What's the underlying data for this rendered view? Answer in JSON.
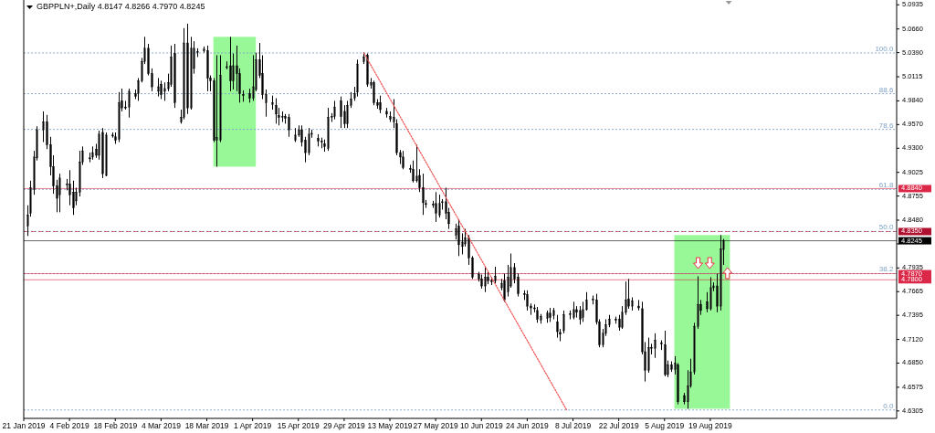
{
  "chart_data": {
    "type": "candlestick",
    "title": "GBPPLN+,Daily  4.8147 4.8266 4.7970 4.8245",
    "xlim": [
      "2019-01-21",
      "2019-10-15"
    ],
    "xticks": [
      {
        "value": "2019-01-21",
        "label": "21 Jan 2019"
      },
      {
        "value": "2019-02-04",
        "label": "4 Feb 2019"
      },
      {
        "value": "2019-02-18",
        "label": "18 Feb 2019"
      },
      {
        "value": "2019-03-04",
        "label": "4 Mar 2019"
      },
      {
        "value": "2019-03-18",
        "label": "18 Mar 2019"
      },
      {
        "value": "2019-04-01",
        "label": "1 Apr 2019"
      },
      {
        "value": "2019-04-15",
        "label": "15 Apr 2019"
      },
      {
        "value": "2019-04-29",
        "label": "29 Apr 2019"
      },
      {
        "value": "2019-05-13",
        "label": "13 May 2019"
      },
      {
        "value": "2019-05-27",
        "label": "27 May 2019"
      },
      {
        "value": "2019-06-10",
        "label": "10 Jun 2019"
      },
      {
        "value": "2019-06-24",
        "label": "24 Jun 2019"
      },
      {
        "value": "2019-07-08",
        "label": "8 Jul 2019"
      },
      {
        "value": "2019-07-22",
        "label": "22 Jul 2019"
      },
      {
        "value": "2019-08-05",
        "label": "5 Aug 2019"
      },
      {
        "value": "2019-08-19",
        "label": "19 Aug 2019"
      }
    ],
    "ylim": [
      4.622,
      5.099
    ],
    "yticks": [
      {
        "value": 5.0935,
        "label": "5.0935"
      },
      {
        "value": 5.066,
        "label": "5.0660"
      },
      {
        "value": 5.039,
        "label": "5.0390"
      },
      {
        "value": 5.0115,
        "label": "5.0115"
      },
      {
        "value": 4.984,
        "label": "4.9840"
      },
      {
        "value": 4.957,
        "label": "4.9570"
      },
      {
        "value": 4.93,
        "label": "4.9300"
      },
      {
        "value": 4.9025,
        "label": "4.9025"
      },
      {
        "value": 4.8755,
        "label": "4.8755"
      },
      {
        "value": 4.848,
        "label": "4.8480"
      },
      {
        "value": 4.821,
        "label": null
      },
      {
        "value": 4.7935,
        "label": "4.7935"
      },
      {
        "value": 4.7665,
        "label": "4.7665"
      },
      {
        "value": 4.7395,
        "label": "4.7395"
      },
      {
        "value": 4.712,
        "label": "4.7120"
      },
      {
        "value": 4.685,
        "label": "4.6850"
      },
      {
        "value": 4.6575,
        "label": "4.6575"
      },
      {
        "value": 4.6305,
        "label": "4.6305"
      }
    ],
    "grid": false,
    "annotations": [
      {
        "text": "100.0",
        "x": "2019-10-14",
        "y": 5.0386
      },
      {
        "text": "88.6",
        "x": "2019-10-14",
        "y": 4.9922
      },
      {
        "text": "78.6",
        "x": "2019-10-14",
        "y": 4.9515
      },
      {
        "text": "61.8",
        "x": "2019-10-14",
        "y": 4.8831
      },
      {
        "text": "50.0",
        "x": "2019-10-14",
        "y": 4.8351
      },
      {
        "text": "38.2",
        "x": "2019-10-14",
        "y": 4.7871
      },
      {
        "text": "0.0",
        "x": "2019-10-14",
        "y": 4.6316
      }
    ],
    "bands": [
      {
        "axis": "x",
        "from": "2019-03-20",
        "to": "2019-04-02",
        "color": "#98f898"
      },
      {
        "axis": "x",
        "from": "2019-08-08",
        "to": "2019-08-25",
        "color": "#98f898"
      }
    ],
    "ref_lines": [
      {
        "axis": "y",
        "value": 5.0386,
        "color": "#7fa3c8",
        "line_style": "dotted"
      },
      {
        "axis": "y",
        "value": 4.9922,
        "color": "#7fa3c8",
        "line_style": "dotted"
      },
      {
        "axis": "y",
        "value": 4.9515,
        "color": "#7fa3c8",
        "line_style": "dotted"
      },
      {
        "axis": "y",
        "value": 4.8831,
        "color": "#7fa3c8",
        "line_style": "dotted"
      },
      {
        "axis": "y",
        "value": 4.8351,
        "color": "#7fa3c8",
        "line_style": "dotted"
      },
      {
        "axis": "y",
        "value": 4.7871,
        "color": "#7fa3c8",
        "line_style": "dotted"
      },
      {
        "axis": "y",
        "value": 4.6316,
        "color": "#7fa3c8",
        "line_style": "dotted"
      },
      {
        "axis": "y",
        "value": 4.884,
        "label": "4.8840",
        "color": "#dc2848",
        "line_style": "solid"
      },
      {
        "axis": "y",
        "value": 4.835,
        "label": "4.8350",
        "color": "#b01030",
        "line_style": "dashed"
      },
      {
        "axis": "y",
        "value": 4.8245,
        "label": "4.8245",
        "color": "#000000",
        "line_style": "solid"
      },
      {
        "axis": "y",
        "value": 4.787,
        "label": "4.7870",
        "color": "#dc2848",
        "line_style": "solid"
      },
      {
        "axis": "y",
        "value": 4.78,
        "label": "4.7800",
        "color": "#dc2848",
        "line_style": "solid"
      }
    ],
    "series": [
      {
        "x": [
          "2019-01-22",
          "2019-01-23",
          "2019-01-24",
          "2019-01-25",
          "2019-01-27",
          "2019-01-28",
          "2019-01-29",
          "2019-01-30",
          "2019-01-31",
          "2019-02-01",
          "2019-02-03",
          "2019-02-04",
          "2019-02-05",
          "2019-02-06",
          "2019-02-07",
          "2019-02-08",
          "2019-02-10",
          "2019-02-11",
          "2019-02-12",
          "2019-02-13",
          "2019-02-14",
          "2019-02-15",
          "2019-02-17",
          "2019-02-18",
          "2019-02-19",
          "2019-02-20",
          "2019-02-21",
          "2019-02-22",
          "2019-02-24",
          "2019-02-25",
          "2019-02-26",
          "2019-02-27",
          "2019-02-28",
          "2019-03-01",
          "2019-03-03",
          "2019-03-04",
          "2019-03-05",
          "2019-03-06",
          "2019-03-07",
          "2019-03-08",
          "2019-03-10",
          "2019-03-11",
          "2019-03-12",
          "2019-03-13",
          "2019-03-14",
          "2019-03-15",
          "2019-03-17",
          "2019-03-18",
          "2019-03-19",
          "2019-03-20",
          "2019-03-21",
          "2019-03-22",
          "2019-03-24",
          "2019-03-25",
          "2019-03-26",
          "2019-03-27",
          "2019-03-28",
          "2019-03-29",
          "2019-03-31",
          "2019-04-01",
          "2019-04-02",
          "2019-04-03",
          "2019-04-04",
          "2019-04-05",
          "2019-04-07",
          "2019-04-08",
          "2019-04-09",
          "2019-04-10",
          "2019-04-11",
          "2019-04-12",
          "2019-04-14",
          "2019-04-15",
          "2019-04-16",
          "2019-04-17",
          "2019-04-18",
          "2019-04-19",
          "2019-04-21",
          "2019-04-22",
          "2019-04-23",
          "2019-04-24",
          "2019-04-25",
          "2019-04-26",
          "2019-04-28",
          "2019-04-29",
          "2019-04-30",
          "2019-05-01",
          "2019-05-02",
          "2019-05-03",
          "2019-05-05",
          "2019-05-06",
          "2019-05-07",
          "2019-05-08",
          "2019-05-09",
          "2019-05-10",
          "2019-05-12",
          "2019-05-13",
          "2019-05-14",
          "2019-05-15",
          "2019-05-16",
          "2019-05-17",
          "2019-05-19",
          "2019-05-20",
          "2019-05-21",
          "2019-05-22",
          "2019-05-23",
          "2019-05-24",
          "2019-05-26",
          "2019-05-27",
          "2019-05-28",
          "2019-05-29",
          "2019-05-30",
          "2019-05-31",
          "2019-06-02",
          "2019-06-03",
          "2019-06-04",
          "2019-06-05",
          "2019-06-06",
          "2019-06-07",
          "2019-06-09",
          "2019-06-10",
          "2019-06-11",
          "2019-06-12",
          "2019-06-13",
          "2019-06-14",
          "2019-06-16",
          "2019-06-17",
          "2019-06-18",
          "2019-06-19",
          "2019-06-20",
          "2019-06-21",
          "2019-06-23",
          "2019-06-24",
          "2019-06-25",
          "2019-06-26",
          "2019-06-27",
          "2019-06-28",
          "2019-06-30",
          "2019-07-01",
          "2019-07-02",
          "2019-07-03",
          "2019-07-04",
          "2019-07-05",
          "2019-07-07",
          "2019-07-08",
          "2019-07-09",
          "2019-07-10",
          "2019-07-11",
          "2019-07-12",
          "2019-07-14",
          "2019-07-15",
          "2019-07-16",
          "2019-07-17",
          "2019-07-18",
          "2019-07-19",
          "2019-07-21",
          "2019-07-22",
          "2019-07-23",
          "2019-07-24",
          "2019-07-25",
          "2019-07-26",
          "2019-07-28",
          "2019-07-29",
          "2019-07-30",
          "2019-07-31",
          "2019-08-01",
          "2019-08-02",
          "2019-08-04",
          "2019-08-05",
          "2019-08-06",
          "2019-08-07",
          "2019-08-08",
          "2019-08-09",
          "2019-08-11",
          "2019-08-12",
          "2019-08-13",
          "2019-08-14",
          "2019-08-15",
          "2019-08-16",
          "2019-08-18",
          "2019-08-19",
          "2019-08-20",
          "2019-08-21",
          "2019-08-22",
          "2019-08-23"
        ],
        "ohlc": [
          [
            4.841,
            4.865,
            4.83,
            4.854
          ],
          [
            4.856,
            4.893,
            4.852,
            4.885
          ],
          [
            4.883,
            4.927,
            4.877,
            4.92
          ],
          [
            4.919,
            4.955,
            4.916,
            4.951
          ],
          [
            4.951,
            4.972,
            4.937,
            4.96
          ],
          [
            4.96,
            4.968,
            4.929,
            4.934
          ],
          [
            4.934,
            4.943,
            4.899,
            4.909
          ],
          [
            4.909,
            4.922,
            4.878,
            4.887
          ],
          [
            4.887,
            4.894,
            4.857,
            4.873
          ],
          [
            4.877,
            4.901,
            4.857,
            4.896
          ],
          [
            4.889,
            4.895,
            4.882,
            4.889
          ],
          [
            4.889,
            4.905,
            4.865,
            4.877
          ],
          [
            4.88,
            4.893,
            4.854,
            4.862
          ],
          [
            4.87,
            4.885,
            4.865,
            4.88
          ],
          [
            4.88,
            4.927,
            4.875,
            4.914
          ],
          [
            4.914,
            4.932,
            4.911,
            4.927
          ],
          [
            4.919,
            4.925,
            4.914,
            4.918
          ],
          [
            4.92,
            4.932,
            4.917,
            4.925
          ],
          [
            4.929,
            4.935,
            4.919,
            4.922
          ],
          [
            4.922,
            4.95,
            4.917,
            4.946
          ],
          [
            4.948,
            4.953,
            4.896,
            4.901
          ],
          [
            4.899,
            4.948,
            4.898,
            4.945
          ],
          [
            4.945,
            4.948,
            4.942,
            4.944
          ],
          [
            4.943,
            4.948,
            4.935,
            4.939
          ],
          [
            4.94,
            4.994,
            4.937,
            4.982
          ],
          [
            4.984,
            4.998,
            4.972,
            4.976
          ],
          [
            4.977,
            4.984,
            4.974,
            4.976
          ],
          [
            4.977,
            4.998,
            4.965,
            4.995
          ],
          [
            4.992,
            4.997,
            4.986,
            4.989
          ],
          [
            4.992,
            5.01,
            4.984,
            5.007
          ],
          [
            5.007,
            5.033,
            5.005,
            5.029
          ],
          [
            5.029,
            5.057,
            5.026,
            5.044
          ],
          [
            5.044,
            5.049,
            5.013,
            5.015
          ],
          [
            5.015,
            5.021,
            4.995,
            5.0
          ],
          [
            4.995,
            5.01,
            4.989,
            5.0
          ],
          [
            5.003,
            5.007,
            4.986,
            4.991
          ],
          [
            4.995,
            5.005,
            4.984,
            4.998
          ],
          [
            4.998,
            5.015,
            4.995,
            5.005
          ],
          [
            5.003,
            5.047,
            5.0,
            5.034
          ],
          [
            5.038,
            5.049,
            4.976,
            4.982
          ],
          [
            4.96,
            4.974,
            4.958,
            4.965
          ],
          [
            4.965,
            5.067,
            4.963,
            5.05
          ],
          [
            5.05,
            5.072,
            4.969,
            4.976
          ],
          [
            4.976,
            5.057,
            4.974,
            5.044
          ],
          [
            5.021,
            5.052,
            5.015,
            5.044
          ],
          [
            5.039,
            5.044,
            5.034,
            5.04
          ],
          [
            5.041,
            5.046,
            5.039,
            5.043
          ],
          [
            5.041,
            5.047,
            4.995,
            5.01
          ],
          [
            5.01,
            5.013,
            4.995,
            5.007
          ],
          [
            5.007,
            5.01,
            4.937,
            4.939
          ],
          [
            4.939,
            5.036,
            4.909,
            4.942
          ],
          [
            4.939,
            5.036,
            4.937,
            5.013
          ],
          [
            5.023,
            5.029,
            5.02,
            5.023
          ],
          [
            5.024,
            5.057,
            4.995,
            5.007
          ],
          [
            5.007,
            5.038,
            4.997,
            5.024
          ],
          [
            5.024,
            5.047,
            4.995,
            5.015
          ],
          [
            5.015,
            5.021,
            4.982,
            4.992
          ],
          [
            4.991,
            4.996,
            4.983,
            4.99
          ],
          [
            4.992,
            4.998,
            4.982,
            4.987
          ],
          [
            4.987,
            5.036,
            4.984,
            5.0
          ],
          [
            4.997,
            5.039,
            4.995,
            5.031
          ],
          [
            5.031,
            5.05,
            5.01,
            5.013
          ],
          [
            5.015,
            5.036,
            4.986,
            4.991
          ],
          [
            4.982,
            4.997,
            4.966,
            4.991
          ],
          [
            4.98,
            4.99,
            4.974,
            4.982
          ],
          [
            4.979,
            4.987,
            4.958,
            4.969
          ],
          [
            4.967,
            4.976,
            4.956,
            4.965
          ],
          [
            4.965,
            4.972,
            4.96,
            4.966
          ],
          [
            4.966,
            4.969,
            4.958,
            4.964
          ],
          [
            4.965,
            4.969,
            4.943,
            4.951
          ],
          [
            4.939,
            4.953,
            4.937,
            4.945
          ],
          [
            4.945,
            4.956,
            4.943,
            4.951
          ],
          [
            4.951,
            4.956,
            4.932,
            4.937
          ],
          [
            4.939,
            4.943,
            4.914,
            4.925
          ],
          [
            4.925,
            4.953,
            4.922,
            4.946
          ],
          [
            4.946,
            4.951,
            4.942,
            4.947
          ],
          [
            4.941,
            4.946,
            4.932,
            4.938
          ],
          [
            4.938,
            4.942,
            4.93,
            4.937
          ],
          [
            4.935,
            4.94,
            4.926,
            4.932
          ],
          [
            4.93,
            4.976,
            4.927,
            4.965
          ],
          [
            4.965,
            4.97,
            4.96,
            4.966
          ],
          [
            4.966,
            4.984,
            4.963,
            4.977
          ],
          [
            4.984,
            4.989,
            4.953,
            4.966
          ],
          [
            4.972,
            4.979,
            4.953,
            4.958
          ],
          [
            4.958,
            4.984,
            4.953,
            4.979
          ],
          [
            4.979,
            4.994,
            4.976,
            4.986
          ],
          [
            4.987,
            5.0,
            4.984,
            4.992
          ],
          [
            4.994,
            5.031,
            4.989,
            5.026
          ],
          [
            5.029,
            5.039,
            5.026,
            5.034
          ],
          [
            5.036,
            5.038,
            5.0,
            5.003
          ],
          [
            5.002,
            5.01,
            4.998,
            5.005
          ],
          [
            5.005,
            5.007,
            4.979,
            4.982
          ],
          [
            4.982,
            4.986,
            4.975,
            4.979
          ],
          [
            4.982,
            4.99,
            4.97,
            4.974
          ],
          [
            4.972,
            4.976,
            4.965,
            4.969
          ],
          [
            4.966,
            4.972,
            4.96,
            4.963
          ],
          [
            4.96,
            4.986,
            4.953,
            4.965
          ],
          [
            4.958,
            4.963,
            4.922,
            4.925
          ],
          [
            4.925,
            4.928,
            4.912,
            4.92
          ],
          [
            4.92,
            4.927,
            4.906,
            4.908
          ],
          [
            4.907,
            4.911,
            4.902,
            4.906
          ],
          [
            4.906,
            4.916,
            4.891,
            4.893
          ],
          [
            4.893,
            4.934,
            4.891,
            4.898
          ],
          [
            4.899,
            4.906,
            4.88,
            4.885
          ],
          [
            4.885,
            4.901,
            4.854,
            4.868
          ],
          [
            4.867,
            4.871,
            4.862,
            4.866
          ],
          [
            4.866,
            4.87,
            4.862,
            4.865
          ],
          [
            4.867,
            4.88,
            4.846,
            4.856
          ],
          [
            4.854,
            4.877,
            4.851,
            4.867
          ],
          [
            4.868,
            4.872,
            4.86,
            4.869
          ],
          [
            4.869,
            4.885,
            4.849,
            4.856
          ],
          [
            4.857,
            4.862,
            4.838,
            4.844
          ],
          [
            4.831,
            4.844,
            4.826,
            4.838
          ],
          [
            4.841,
            4.849,
            4.807,
            4.82
          ],
          [
            4.818,
            4.833,
            4.809,
            4.823
          ],
          [
            4.821,
            4.838,
            4.818,
            4.828
          ],
          [
            4.828,
            4.831,
            4.797,
            4.805
          ],
          [
            4.805,
            4.807,
            4.781,
            4.783
          ],
          [
            4.786,
            4.789,
            4.778,
            4.781
          ],
          [
            4.781,
            4.786,
            4.77,
            4.773
          ],
          [
            4.773,
            4.794,
            4.766,
            4.783
          ],
          [
            4.783,
            4.789,
            4.775,
            4.779
          ],
          [
            4.779,
            4.783,
            4.774,
            4.778
          ],
          [
            4.779,
            4.795,
            4.776,
            4.784
          ],
          [
            4.771,
            4.781,
            4.768,
            4.776
          ],
          [
            4.779,
            4.787,
            4.755,
            4.757
          ],
          [
            4.766,
            4.797,
            4.761,
            4.783
          ],
          [
            4.773,
            4.81,
            4.771,
            4.794
          ],
          [
            4.794,
            4.799,
            4.776,
            4.781
          ],
          [
            4.783,
            4.787,
            4.761,
            4.764
          ],
          [
            4.764,
            4.768,
            4.757,
            4.763
          ],
          [
            4.763,
            4.768,
            4.745,
            4.75
          ],
          [
            4.75,
            4.753,
            4.74,
            4.748
          ],
          [
            4.748,
            4.752,
            4.743,
            4.747
          ],
          [
            4.745,
            4.749,
            4.731,
            4.735
          ],
          [
            4.734,
            4.741,
            4.73,
            4.738
          ],
          [
            4.736,
            4.745,
            4.731,
            4.742
          ],
          [
            4.742,
            4.748,
            4.732,
            4.737
          ],
          [
            4.739,
            4.748,
            4.735,
            4.745
          ],
          [
            4.732,
            4.74,
            4.714,
            4.721
          ],
          [
            4.72,
            4.724,
            4.71,
            4.718
          ],
          [
            4.722,
            4.745,
            4.719,
            4.74
          ],
          [
            4.74,
            4.745,
            4.735,
            4.741
          ],
          [
            4.737,
            4.755,
            4.735,
            4.746
          ],
          [
            4.746,
            4.75,
            4.737,
            4.743
          ],
          [
            4.745,
            4.75,
            4.729,
            4.735
          ],
          [
            4.737,
            4.755,
            4.732,
            4.746
          ],
          [
            4.746,
            4.766,
            4.745,
            4.757
          ],
          [
            4.757,
            4.762,
            4.752,
            4.758
          ],
          [
            4.757,
            4.764,
            4.729,
            4.732
          ],
          [
            4.732,
            4.735,
            4.703,
            4.706
          ],
          [
            4.706,
            4.724,
            4.703,
            4.719
          ],
          [
            4.719,
            4.735,
            4.716,
            4.729
          ],
          [
            4.729,
            4.74,
            4.726,
            4.735
          ],
          [
            4.735,
            4.738,
            4.73,
            4.734
          ],
          [
            4.735,
            4.74,
            4.722,
            4.726
          ],
          [
            4.726,
            4.75,
            4.724,
            4.743
          ],
          [
            4.743,
            4.778,
            4.74,
            4.757
          ],
          [
            4.758,
            4.781,
            4.747,
            4.75
          ],
          [
            4.75,
            4.76,
            4.745,
            4.756
          ],
          [
            4.75,
            4.757,
            4.745,
            4.748
          ],
          [
            4.747,
            4.755,
            4.695,
            4.698
          ],
          [
            4.698,
            4.709,
            4.664,
            4.677
          ],
          [
            4.677,
            4.714,
            4.674,
            4.703
          ],
          [
            4.703,
            4.707,
            4.695,
            4.702
          ],
          [
            4.702,
            4.719,
            4.691,
            4.711
          ],
          [
            4.708,
            4.711,
            4.7,
            4.707
          ],
          [
            4.706,
            4.722,
            4.67,
            4.672
          ],
          [
            4.672,
            4.688,
            4.669,
            4.683
          ],
          [
            4.683,
            4.687,
            4.675,
            4.678
          ],
          [
            4.678,
            4.693,
            4.672,
            4.685
          ],
          [
            4.683,
            4.685,
            4.638,
            4.641
          ],
          [
            4.648,
            4.651,
            4.638,
            4.641
          ],
          [
            4.641,
            4.677,
            4.633,
            4.659
          ],
          [
            4.659,
            4.69,
            4.657,
            4.675
          ],
          [
            4.675,
            4.731,
            4.672,
            4.727
          ],
          [
            4.727,
            4.784,
            4.724,
            4.752
          ],
          [
            4.752,
            4.757,
            4.74,
            4.745
          ],
          [
            4.755,
            4.766,
            4.743,
            4.747
          ],
          [
            4.747,
            4.783,
            4.745,
            4.771
          ],
          [
            4.771,
            4.777,
            4.767,
            4.773
          ],
          [
            4.773,
            4.787,
            4.743,
            4.75
          ],
          [
            4.75,
            4.831,
            4.745,
            4.815
          ],
          [
            4.8147,
            4.8266,
            4.797,
            4.8245
          ]
        ]
      },
      {
        "type": "line",
        "x": [
          "2019-05-05",
          "2019-07-06"
        ],
        "values": [
          5.039,
          4.632
        ],
        "color": "#f05050",
        "line_style": "dotted"
      }
    ]
  }
}
